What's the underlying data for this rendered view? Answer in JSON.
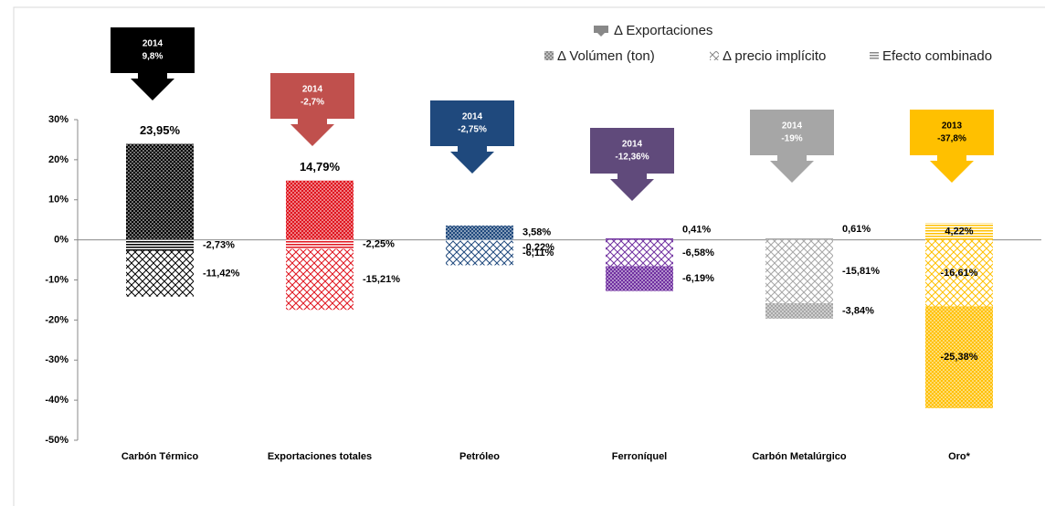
{
  "chart_data": {
    "type": "bar",
    "categories": [
      "Carbón Térmico",
      "Exportaciones totales",
      "Petróleo",
      "Ferroníquel",
      "Carbón  Metalúrgico",
      "Oro*"
    ],
    "colors": [
      "#000000",
      "#e0141e",
      "#1f497d",
      "#7030a0",
      "#a6a6a6",
      "#ffc000"
    ],
    "series": [
      {
        "name": "Δ Volúmen (ton)",
        "pattern": "dots",
        "values": [
          23.95,
          14.79,
          3.58,
          -6.19,
          -3.84,
          -25.38
        ],
        "value_labels": [
          "23,95%",
          "14,79%",
          "3,58%",
          "-6,19%",
          "-3,84%",
          "-25,38%"
        ]
      },
      {
        "name": "Δ precio implícito",
        "pattern": "crosshatch",
        "values": [
          -11.42,
          -15.21,
          -6.11,
          -6.58,
          -15.81,
          -16.61
        ],
        "value_labels": [
          "-11,42%",
          "-15,21%",
          "-6,11%",
          "-6,58%",
          "-15,81%",
          "-16,61%"
        ]
      },
      {
        "name": "Efecto combinado",
        "pattern": "lines",
        "values": [
          -2.73,
          -2.25,
          -0.22,
          0.41,
          0.61,
          4.22
        ],
        "value_labels": [
          "-2,73%",
          "-2,25%",
          "-0,22%",
          "0,41%",
          "0,61%",
          "4,22%"
        ]
      }
    ],
    "exports": {
      "name": "Δ Exportaciones",
      "colors": [
        "#000000",
        "#c0504d",
        "#1f497d",
        "#604a7b",
        "#a6a6a6",
        "#ffc000"
      ],
      "years": [
        "2014",
        "2014",
        "2014",
        "2014",
        "2014",
        "2013"
      ],
      "values": [
        9.8,
        -2.7,
        -2.75,
        -12.36,
        -19,
        -37.8
      ],
      "value_labels": [
        "9,8%",
        "-2,7%",
        "-2,75%",
        "-12,36%",
        "-19%",
        "-37,8%"
      ]
    },
    "ylim": [
      -50,
      30
    ],
    "yticks": [
      {
        "value": -50,
        "label": "-50%"
      },
      {
        "value": -40,
        "label": "-40%"
      },
      {
        "value": -30,
        "label": "-30%"
      },
      {
        "value": -20,
        "label": "-20%"
      },
      {
        "value": -10,
        "label": "-10%"
      },
      {
        "value": 0,
        "label": "0%"
      },
      {
        "value": 10,
        "label": "10%"
      },
      {
        "value": 20,
        "label": "20%"
      },
      {
        "value": 30,
        "label": "30%"
      }
    ]
  }
}
